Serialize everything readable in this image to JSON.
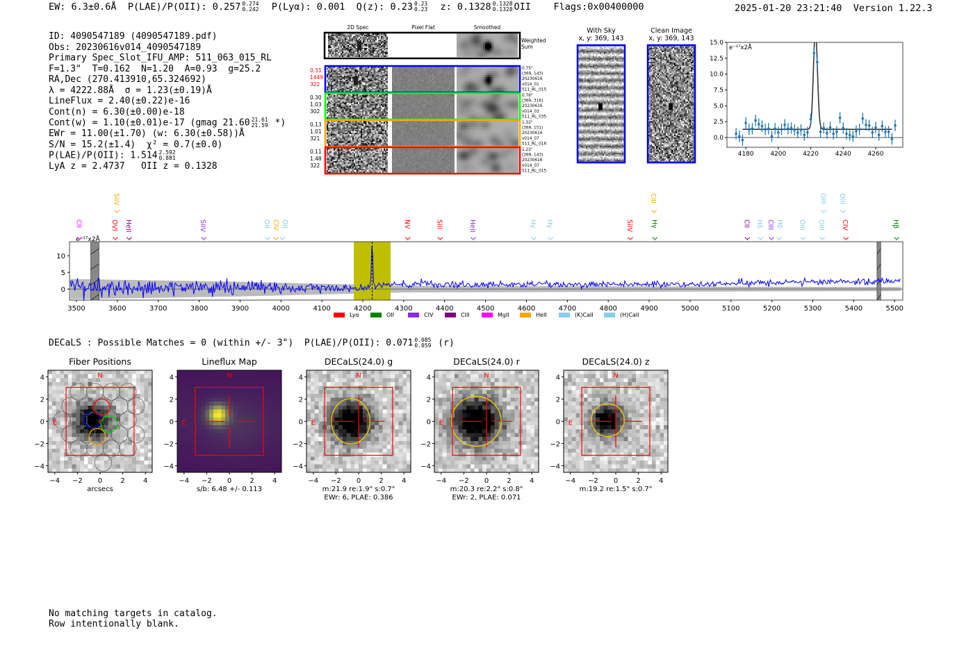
{
  "header": {
    "ew": "EW: 6.3±0.6Å",
    "plae_label": "P(LAE)/P(OII): 0.257",
    "plae_hi": "0.274",
    "plae_lo": "0.242",
    "plya": "P(Lyα): 0.001",
    "qz_label": "Q(z): 0.23",
    "qz_hi": "0.23",
    "qz_lo": "0.23",
    "z_label": "z: 0.1328",
    "z_hi": "0.1328",
    "z_lo": "0.1328",
    "z_line": "OII",
    "flags": "Flags:0x00400000",
    "timestamp": "2025-01-20 23:21:40",
    "version": "Version 1.22.3"
  },
  "info": {
    "lines": [
      "ID: 4090547189 (4090547189.pdf)",
      "Obs: 20230616v014_4090547189",
      "Primary Spec_Slot_IFU_AMP: 511_063_015_RL",
      "F=1.3\"  T=0.162  N=1.20  A=0.93  g=25.2",
      "RA,Dec (270.413910,65.324692)",
      "λ = 4222.88Å  σ = 1.23(±0.19)Å",
      "LineFlux = 2.40(±0.22)e-16",
      "Cont(n) = 6.30(±0.00)e-18"
    ],
    "contw_pre": "Cont(w) = 1.10(±0.01)e-17 (gmag 21.60",
    "contw_hi": "21.61",
    "contw_lo": "21.59",
    "contw_post": " *)",
    "ewr": "EWr = 11.00(±1.70) (w: 6.30(±0.58))Å",
    "sn": "S/N = 15.2(±1.4)  χ² = 0.7(±0.0)",
    "plae_pre": "P(LAE)/P(OII): 1.514",
    "plae_hi": "2.592",
    "plae_lo": "0.881",
    "z": "LyA z = 2.4737   OII z = 0.1328"
  },
  "spec2d": {
    "col_headers": [
      "2D Spec",
      "Pixel Flat",
      "Smoothed"
    ],
    "weighted_label": [
      "Weighted",
      "Sum"
    ],
    "rows": [
      {
        "color": "#0000ff",
        "left": [
          "0.31",
          "1449",
          "322"
        ],
        "left_color": "#ff0000",
        "right": [
          "0.75\"",
          "(369, 143)",
          "20230616",
          "v014_01",
          "511_RL_015"
        ]
      },
      {
        "color": "#00ff00",
        "left": [
          "0.30",
          "1.03",
          "302"
        ],
        "left_color": "#000000",
        "right": [
          "0.76\"",
          "(369, 316)",
          "20230616",
          "v014_03",
          "511_RL_035"
        ]
      },
      {
        "color": "#ffa500",
        "left": [
          "0.13",
          "1.01",
          "321"
        ],
        "left_color": "#000000",
        "right": [
          "1.32\"",
          "(369, 151)",
          "20230616",
          "v014_07",
          "511_RL_016"
        ]
      },
      {
        "color": "#ff0000",
        "left": [
          "0.11",
          "1.48",
          "322"
        ],
        "left_color": "#000000",
        "right": [
          "1.22\"",
          "(369, 143)",
          "20230616",
          "v014_07",
          "511_RL_015"
        ]
      }
    ]
  },
  "stamps": {
    "with_sky": [
      "With Sky",
      "x, y: 369, 143"
    ],
    "clean": [
      "Clean Image",
      "x, y: 369, 143"
    ]
  },
  "chart_data": [
    {
      "type": "scatter",
      "name": "line-zoom",
      "unit_label": "e⁻¹⁷x2Å",
      "xlim": [
        4168.4,
        4276.7
      ],
      "ylim": [
        -1.53,
        15.0
      ],
      "xticks": [
        "4180",
        "4200",
        "4220",
        "4240",
        "4260"
      ],
      "yticks": [
        "0.0",
        "2.5",
        "5.0",
        "7.5",
        "10.0",
        "12.5",
        "15.0"
      ],
      "x": [
        4174,
        4176,
        4178,
        4180,
        4182,
        4184,
        4186,
        4188,
        4190,
        4192,
        4194,
        4196,
        4198,
        4200,
        4202,
        4204,
        4206,
        4208,
        4210,
        4212,
        4214,
        4216,
        4218,
        4220,
        4222,
        4224,
        4226,
        4228,
        4230,
        4232,
        4234,
        4236,
        4238,
        4240,
        4242,
        4244,
        4246,
        4248,
        4250,
        4252,
        4254,
        4256,
        4258,
        4260,
        4262,
        4264,
        4266,
        4268,
        4270,
        4272
      ],
      "y": [
        0.6,
        0.2,
        -0.4,
        2.3,
        1.3,
        1.4,
        2.7,
        2.1,
        1.8,
        1.3,
        1.4,
        0.2,
        1.4,
        0.8,
        1.3,
        2.0,
        1.4,
        1.5,
        1.2,
        0.8,
        1.2,
        0.4,
        0.8,
        2.9,
        13.3,
        11.9,
        0.9,
        1.5,
        0.7,
        1.6,
        0.6,
        0.9,
        3.1,
        1.5,
        0.6,
        0.4,
        0.2,
        1.0,
        1.3,
        3.0,
        2.0,
        1.9,
        0.8,
        1.6,
        0.4,
        1.8,
        0.9,
        0.9,
        -0.2,
        1.9
      ],
      "yerr": 0.9,
      "fit": {
        "center": 4222.88,
        "sigma": 1.23,
        "continuum": 1.3,
        "peak": 17.0,
        "range": [
          4178,
          4270
        ]
      }
    },
    {
      "type": "line",
      "name": "full-spectrum",
      "unit_label": "e⁻¹⁷x2Å",
      "xlim": [
        3483,
        5520
      ],
      "ylim": [
        -3.3,
        14.2
      ],
      "xticks": [
        "3500",
        "3600",
        "3700",
        "3800",
        "3900",
        "4000",
        "4100",
        "4200",
        "4300",
        "4400",
        "4500",
        "4600",
        "4700",
        "4800",
        "4900",
        "5000",
        "5100",
        "5200",
        "5300",
        "5400",
        "5500"
      ],
      "yticks": [
        "0",
        "5",
        "10"
      ],
      "continuum": [
        [
          3500,
          0.4
        ],
        [
          4000,
          0.4
        ],
        [
          4150,
          0.4
        ],
        [
          4300,
          1.4
        ],
        [
          5000,
          1.4
        ],
        [
          5300,
          2.2
        ],
        [
          5515,
          2.4
        ]
      ],
      "noise": [
        [
          3500,
          1.5
        ],
        [
          3900,
          1.1
        ],
        [
          4300,
          0.5
        ],
        [
          5515,
          0.5
        ]
      ],
      "error_band": [
        [
          3500,
          3.0
        ],
        [
          3900,
          2.2
        ],
        [
          4300,
          1.0
        ],
        [
          5515,
          0.6
        ]
      ],
      "emission": {
        "center": 4222.88,
        "peak": 14.0
      },
      "masked": [
        [
          3535,
          3555
        ],
        [
          5457,
          5466
        ]
      ],
      "highlight": [
        4178,
        4268
      ],
      "highlight_color": "#bfbf00",
      "line_labels": [
        {
          "t": "CII",
          "w": 3508,
          "c": "#ff00ff",
          "row": 0
        },
        {
          "t": "OVI",
          "w": 3595,
          "c": "#ff0000",
          "row": 0
        },
        {
          "t": "HeII",
          "w": 3629,
          "c": "#800080",
          "row": 0
        },
        {
          "t": "SiIV",
          "w": 3811,
          "c": "#8a2be2",
          "row": 0
        },
        {
          "t": "OII",
          "w": 3967,
          "c": "#87ceeb",
          "row": 0
        },
        {
          "t": "CIV",
          "w": 3988,
          "c": "#ffa500",
          "row": 0
        },
        {
          "t": "OII",
          "w": 4003,
          "c": "#87ceeb",
          "row": 0
        },
        {
          "t": "NV",
          "w": 4310,
          "c": "#ff0000",
          "row": 0
        },
        {
          "t": "SiII",
          "w": 4389,
          "c": "#ff0000",
          "row": 0
        },
        {
          "t": "HeII",
          "w": 4470,
          "c": "#8a2be2",
          "row": 0
        },
        {
          "t": "Hγ",
          "w": 4618,
          "c": "#87ceeb",
          "row": 0
        },
        {
          "t": "Hγ",
          "w": 4659,
          "c": "#87ceeb",
          "row": 0
        },
        {
          "t": "SiIV",
          "w": 4854,
          "c": "#ff0000",
          "row": 0
        },
        {
          "t": "Hγ",
          "w": 4914,
          "c": "#008000",
          "row": 0
        },
        {
          "t": "CII",
          "w": 5140,
          "c": "#800080",
          "row": 0
        },
        {
          "t": "Hδ",
          "w": 5172,
          "c": "#87ceeb",
          "row": 0
        },
        {
          "t": "CIII",
          "w": 5199,
          "c": "#8a2be2",
          "row": 0
        },
        {
          "t": "Hδ",
          "w": 5218,
          "c": "#87ceeb",
          "row": 0
        },
        {
          "t": "OIII",
          "w": 5276,
          "c": "#87ceeb",
          "row": 0
        },
        {
          "t": "OIII",
          "w": 5323,
          "c": "#87ceeb",
          "row": 0
        },
        {
          "t": "CIV",
          "w": 5381,
          "c": "#ff0000",
          "row": 0
        },
        {
          "t": "Hβ",
          "w": 5505,
          "c": "#008000",
          "row": 0
        },
        {
          "t": "SiIV",
          "w": 3599,
          "c": "#ffa500",
          "row": 1
        },
        {
          "t": "CIII",
          "w": 4912,
          "c": "#ffa500",
          "row": 1
        },
        {
          "t": "OIII",
          "w": 5327,
          "c": "#87ceeb",
          "row": 1
        },
        {
          "t": "OIII",
          "w": 5374,
          "c": "#87ceeb",
          "row": 1
        }
      ],
      "legend": [
        {
          "label": "Lyα",
          "color": "#ff0000"
        },
        {
          "label": "OII",
          "color": "#008000"
        },
        {
          "label": "CIV",
          "color": "#8a2be2"
        },
        {
          "label": "CIII",
          "color": "#800080"
        },
        {
          "label": "MgII",
          "color": "#ff00ff"
        },
        {
          "label": "HeII",
          "color": "#ffa500"
        },
        {
          "label": "(K)CaII",
          "color": "#87ceeb"
        },
        {
          "label": "(H)CaII",
          "color": "#87ceeb"
        }
      ],
      "legend_placement": "bottom-center"
    }
  ],
  "decals": {
    "pre": "DECaLS : Possible Matches = 0 (within +/- 3\")  P(LAE)/P(OII): 0.071",
    "hi": "0.085",
    "lo": "0.059",
    "post": " (r)"
  },
  "cutouts": {
    "ticks": [
      "−4",
      "−2",
      "0",
      "2",
      "4"
    ],
    "north": "N",
    "east": "E",
    "panels": [
      {
        "title": "Fiber Positions",
        "captions": [
          "arcsecs"
        ]
      },
      {
        "title": "Lineflux Map",
        "captions": [
          "s/b: 6.48 +/- 0.113"
        ]
      },
      {
        "title": "DECaLS(24.0) g",
        "captions": [
          "m:21.9  re:1.9\"  s:0.7\"",
          "EWr: 6, PLAE: 0.386"
        ]
      },
      {
        "title": "DECaLS(24.0) r",
        "captions": [
          "m:20.3  re:2.2\"  s:0.8\"",
          "EWr: 2, PLAE: 0.071"
        ]
      },
      {
        "title": "DECaLS(24.0) z",
        "captions": [
          "m:19.2  re:1.5\"  s:0.7\""
        ]
      }
    ]
  },
  "footer": [
    "No matching targets in catalog.",
    "Row intentionally blank."
  ]
}
